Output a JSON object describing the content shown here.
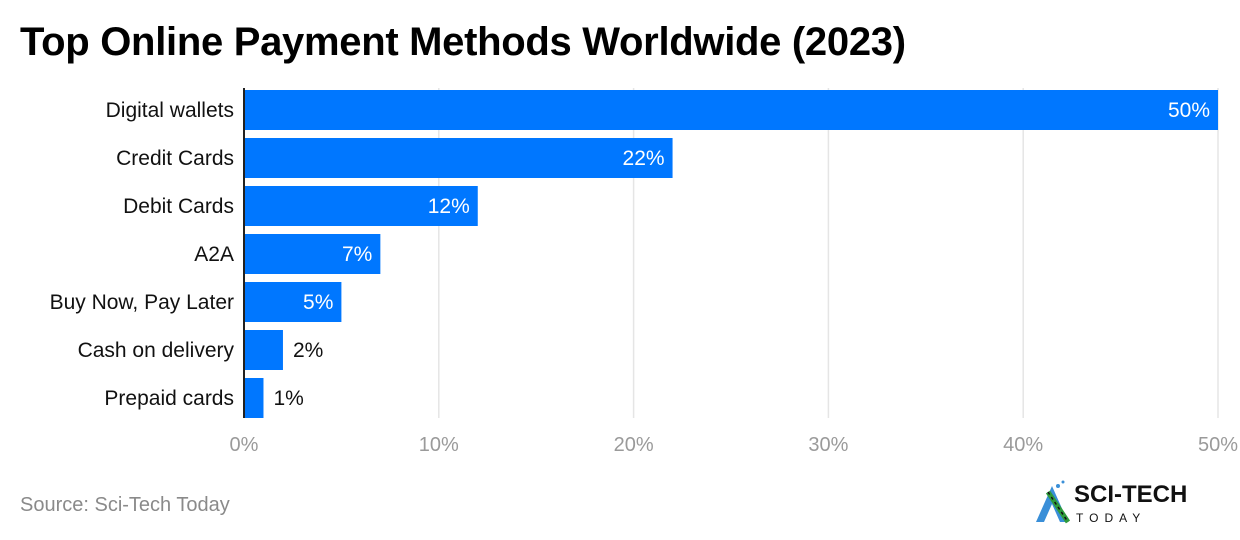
{
  "title": "Top Online Payment Methods Worldwide (2023)",
  "source": "Source: Sci-Tech Today",
  "logo": {
    "line1": "SCI-TECH",
    "line2": "TODAY"
  },
  "colors": {
    "bar": "#0077FF",
    "grid": "#E5E5E5",
    "tick_label": "#9A9A9A"
  },
  "chart_data": {
    "type": "bar",
    "orientation": "horizontal",
    "categories": [
      "Digital wallets",
      "Credit Cards",
      "Debit Cards",
      "A2A",
      "Buy Now, Pay Later",
      "Cash on delivery",
      "Prepaid cards"
    ],
    "values": [
      50,
      22,
      12,
      7,
      5,
      2,
      1
    ],
    "data_labels": [
      "50%",
      "22%",
      "12%",
      "7%",
      "5%",
      "2%",
      "1%"
    ],
    "xlim": [
      0,
      50
    ],
    "xticks": [
      0,
      10,
      20,
      30,
      40,
      50
    ],
    "xtick_labels": [
      "0%",
      "10%",
      "20%",
      "30%",
      "40%",
      "50%"
    ],
    "grid": true,
    "unit": "%"
  }
}
